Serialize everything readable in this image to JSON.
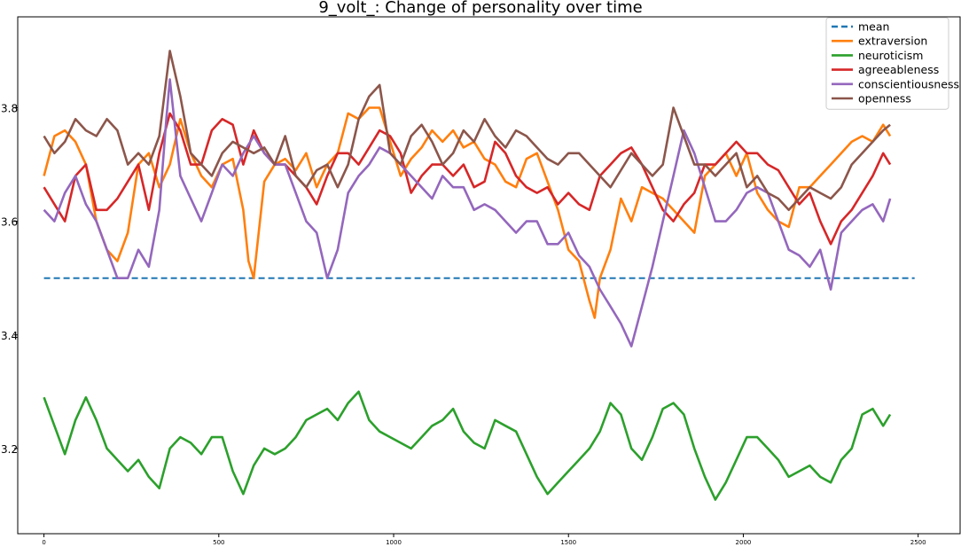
{
  "chart_data": {
    "type": "line",
    "title": "9_volt_: Change of personality over time",
    "xlabel": "",
    "ylabel": "",
    "xlim": [
      -75,
      2620
    ],
    "ylim": [
      3.05,
      3.96
    ],
    "x_ticks": [
      0,
      500,
      1000,
      1500,
      2000,
      2500
    ],
    "y_ticks": [
      3.2,
      3.4,
      3.6,
      3.8
    ],
    "grid": false,
    "legend_position": "top-right",
    "series": [
      {
        "name": "mean",
        "color": "#1f77b4",
        "style": "dashed",
        "x": [
          0,
          2490
        ],
        "values": [
          3.5,
          3.5
        ]
      },
      {
        "name": "extraversion",
        "color": "#ff7f0e",
        "style": "solid",
        "x": [
          0,
          30,
          60,
          90,
          120,
          150,
          180,
          210,
          240,
          270,
          300,
          330,
          360,
          390,
          420,
          450,
          480,
          510,
          540,
          570,
          585,
          600,
          630,
          660,
          690,
          720,
          750,
          780,
          810,
          840,
          870,
          900,
          930,
          960,
          990,
          1020,
          1050,
          1080,
          1110,
          1140,
          1170,
          1200,
          1230,
          1260,
          1290,
          1320,
          1350,
          1380,
          1410,
          1440,
          1470,
          1500,
          1530,
          1560,
          1575,
          1590,
          1620,
          1650,
          1680,
          1710,
          1740,
          1770,
          1800,
          1830,
          1860,
          1890,
          1920,
          1950,
          1980,
          2010,
          2040,
          2070,
          2100,
          2130,
          2160,
          2190,
          2220,
          2250,
          2280,
          2310,
          2340,
          2370,
          2400,
          2420
        ],
        "values": [
          3.68,
          3.75,
          3.76,
          3.74,
          3.7,
          3.6,
          3.55,
          3.53,
          3.58,
          3.7,
          3.72,
          3.66,
          3.7,
          3.78,
          3.72,
          3.68,
          3.66,
          3.7,
          3.71,
          3.62,
          3.53,
          3.5,
          3.67,
          3.7,
          3.71,
          3.69,
          3.72,
          3.66,
          3.7,
          3.72,
          3.79,
          3.78,
          3.8,
          3.8,
          3.74,
          3.68,
          3.71,
          3.73,
          3.76,
          3.74,
          3.76,
          3.73,
          3.74,
          3.71,
          3.7,
          3.67,
          3.66,
          3.71,
          3.72,
          3.67,
          3.62,
          3.55,
          3.53,
          3.46,
          3.43,
          3.5,
          3.55,
          3.64,
          3.6,
          3.66,
          3.65,
          3.64,
          3.62,
          3.6,
          3.58,
          3.68,
          3.7,
          3.72,
          3.68,
          3.72,
          3.65,
          3.62,
          3.6,
          3.59,
          3.66,
          3.66,
          3.68,
          3.7,
          3.72,
          3.74,
          3.75,
          3.74,
          3.77,
          3.75
        ]
      },
      {
        "name": "neuroticism",
        "color": "#2ca02c",
        "style": "solid",
        "x": [
          0,
          30,
          60,
          90,
          120,
          150,
          180,
          210,
          240,
          270,
          300,
          330,
          360,
          390,
          420,
          450,
          480,
          510,
          540,
          570,
          600,
          630,
          660,
          690,
          720,
          750,
          780,
          810,
          840,
          870,
          900,
          930,
          960,
          990,
          1020,
          1050,
          1080,
          1110,
          1140,
          1170,
          1200,
          1230,
          1260,
          1290,
          1320,
          1350,
          1380,
          1410,
          1440,
          1470,
          1500,
          1530,
          1560,
          1590,
          1620,
          1650,
          1680,
          1710,
          1740,
          1770,
          1800,
          1830,
          1860,
          1890,
          1920,
          1950,
          1980,
          2010,
          2040,
          2070,
          2100,
          2130,
          2160,
          2190,
          2220,
          2250,
          2280,
          2310,
          2340,
          2370,
          2400,
          2420
        ],
        "values": [
          3.29,
          3.24,
          3.19,
          3.25,
          3.29,
          3.25,
          3.2,
          3.18,
          3.16,
          3.18,
          3.15,
          3.13,
          3.2,
          3.22,
          3.21,
          3.19,
          3.22,
          3.22,
          3.16,
          3.12,
          3.17,
          3.2,
          3.19,
          3.2,
          3.22,
          3.25,
          3.26,
          3.27,
          3.25,
          3.28,
          3.3,
          3.25,
          3.23,
          3.22,
          3.21,
          3.2,
          3.22,
          3.24,
          3.25,
          3.27,
          3.23,
          3.21,
          3.2,
          3.25,
          3.24,
          3.23,
          3.19,
          3.15,
          3.12,
          3.14,
          3.16,
          3.18,
          3.2,
          3.23,
          3.28,
          3.26,
          3.2,
          3.18,
          3.22,
          3.27,
          3.28,
          3.26,
          3.2,
          3.15,
          3.11,
          3.14,
          3.18,
          3.22,
          3.22,
          3.2,
          3.18,
          3.15,
          3.16,
          3.17,
          3.15,
          3.14,
          3.18,
          3.2,
          3.26,
          3.27,
          3.24,
          3.26
        ]
      },
      {
        "name": "agreeableness",
        "color": "#d62728",
        "style": "solid",
        "x": [
          0,
          30,
          60,
          90,
          120,
          150,
          180,
          210,
          240,
          270,
          300,
          330,
          360,
          390,
          420,
          450,
          480,
          510,
          540,
          570,
          600,
          630,
          660,
          690,
          720,
          750,
          780,
          810,
          840,
          870,
          900,
          930,
          960,
          990,
          1020,
          1050,
          1080,
          1110,
          1140,
          1170,
          1200,
          1230,
          1260,
          1290,
          1320,
          1350,
          1380,
          1410,
          1440,
          1470,
          1500,
          1530,
          1560,
          1590,
          1620,
          1650,
          1680,
          1710,
          1740,
          1770,
          1800,
          1830,
          1860,
          1890,
          1920,
          1950,
          1980,
          2010,
          2040,
          2070,
          2100,
          2130,
          2160,
          2190,
          2220,
          2250,
          2280,
          2310,
          2340,
          2370,
          2400,
          2420
        ],
        "values": [
          3.66,
          3.63,
          3.6,
          3.68,
          3.7,
          3.62,
          3.62,
          3.64,
          3.67,
          3.7,
          3.62,
          3.72,
          3.79,
          3.76,
          3.7,
          3.7,
          3.76,
          3.78,
          3.77,
          3.7,
          3.76,
          3.72,
          3.7,
          3.7,
          3.68,
          3.66,
          3.63,
          3.68,
          3.72,
          3.72,
          3.7,
          3.73,
          3.76,
          3.75,
          3.72,
          3.65,
          3.68,
          3.7,
          3.7,
          3.68,
          3.7,
          3.66,
          3.67,
          3.74,
          3.72,
          3.68,
          3.66,
          3.65,
          3.66,
          3.63,
          3.65,
          3.63,
          3.62,
          3.68,
          3.7,
          3.72,
          3.73,
          3.7,
          3.66,
          3.62,
          3.6,
          3.63,
          3.65,
          3.7,
          3.7,
          3.72,
          3.74,
          3.72,
          3.72,
          3.7,
          3.69,
          3.66,
          3.63,
          3.65,
          3.6,
          3.56,
          3.6,
          3.62,
          3.65,
          3.68,
          3.72,
          3.7
        ]
      },
      {
        "name": "conscientiousness",
        "color": "#9467bd",
        "style": "solid",
        "x": [
          0,
          30,
          60,
          90,
          120,
          150,
          180,
          210,
          240,
          270,
          300,
          330,
          350,
          360,
          390,
          420,
          450,
          480,
          510,
          540,
          570,
          600,
          630,
          660,
          690,
          720,
          750,
          780,
          810,
          840,
          870,
          900,
          930,
          960,
          990,
          1020,
          1050,
          1080,
          1110,
          1140,
          1170,
          1200,
          1230,
          1260,
          1290,
          1320,
          1350,
          1380,
          1410,
          1440,
          1470,
          1500,
          1530,
          1560,
          1590,
          1620,
          1650,
          1680,
          1710,
          1740,
          1770,
          1800,
          1830,
          1860,
          1890,
          1920,
          1950,
          1980,
          2010,
          2040,
          2070,
          2100,
          2130,
          2160,
          2190,
          2220,
          2250,
          2280,
          2310,
          2340,
          2370,
          2400,
          2420
        ],
        "values": [
          3.62,
          3.6,
          3.65,
          3.68,
          3.63,
          3.6,
          3.55,
          3.5,
          3.5,
          3.55,
          3.52,
          3.62,
          3.78,
          3.85,
          3.68,
          3.64,
          3.6,
          3.65,
          3.7,
          3.68,
          3.72,
          3.75,
          3.72,
          3.7,
          3.7,
          3.65,
          3.6,
          3.58,
          3.5,
          3.55,
          3.65,
          3.68,
          3.7,
          3.73,
          3.72,
          3.7,
          3.68,
          3.66,
          3.64,
          3.68,
          3.66,
          3.66,
          3.62,
          3.63,
          3.62,
          3.6,
          3.58,
          3.6,
          3.6,
          3.56,
          3.56,
          3.58,
          3.54,
          3.52,
          3.48,
          3.45,
          3.42,
          3.38,
          3.45,
          3.52,
          3.6,
          3.68,
          3.76,
          3.72,
          3.66,
          3.6,
          3.6,
          3.62,
          3.65,
          3.66,
          3.65,
          3.6,
          3.55,
          3.54,
          3.52,
          3.55,
          3.48,
          3.58,
          3.6,
          3.62,
          3.63,
          3.6,
          3.64
        ]
      },
      {
        "name": "openness",
        "color": "#8c564b",
        "style": "solid",
        "x": [
          0,
          30,
          60,
          90,
          120,
          150,
          180,
          210,
          240,
          270,
          300,
          330,
          360,
          390,
          420,
          450,
          480,
          510,
          540,
          570,
          600,
          630,
          660,
          690,
          720,
          750,
          780,
          810,
          840,
          870,
          900,
          930,
          960,
          990,
          1020,
          1050,
          1080,
          1110,
          1140,
          1170,
          1200,
          1230,
          1260,
          1290,
          1320,
          1350,
          1380,
          1410,
          1440,
          1470,
          1500,
          1530,
          1560,
          1590,
          1620,
          1650,
          1680,
          1710,
          1740,
          1770,
          1800,
          1830,
          1860,
          1890,
          1920,
          1950,
          1980,
          2010,
          2040,
          2070,
          2100,
          2130,
          2160,
          2190,
          2220,
          2250,
          2280,
          2310,
          2340,
          2370,
          2400,
          2420
        ],
        "values": [
          3.75,
          3.72,
          3.74,
          3.78,
          3.76,
          3.75,
          3.78,
          3.76,
          3.7,
          3.72,
          3.7,
          3.75,
          3.9,
          3.82,
          3.72,
          3.7,
          3.68,
          3.72,
          3.74,
          3.73,
          3.72,
          3.73,
          3.7,
          3.75,
          3.68,
          3.66,
          3.69,
          3.7,
          3.66,
          3.7,
          3.78,
          3.82,
          3.84,
          3.72,
          3.7,
          3.75,
          3.77,
          3.74,
          3.7,
          3.72,
          3.76,
          3.74,
          3.78,
          3.75,
          3.73,
          3.76,
          3.75,
          3.73,
          3.71,
          3.7,
          3.72,
          3.72,
          3.7,
          3.68,
          3.66,
          3.69,
          3.72,
          3.7,
          3.68,
          3.7,
          3.8,
          3.75,
          3.7,
          3.7,
          3.68,
          3.7,
          3.72,
          3.66,
          3.68,
          3.65,
          3.64,
          3.62,
          3.64,
          3.66,
          3.65,
          3.64,
          3.66,
          3.7,
          3.72,
          3.74,
          3.76,
          3.77
        ]
      }
    ]
  }
}
